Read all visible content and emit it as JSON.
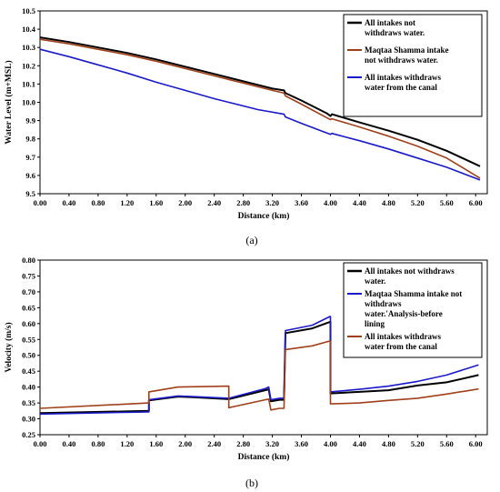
{
  "chart_data": [
    {
      "type": "line",
      "panel": "(a)",
      "xlabel": "Distance (km)",
      "ylabel": "Water Level (m+MSL)",
      "xlim": [
        0,
        6.16
      ],
      "ylim": [
        9.5,
        10.5
      ],
      "xticks": [
        "0.00",
        "0.40",
        "0.80",
        "1.20",
        "1.60",
        "2.00",
        "2.40",
        "2.80",
        "3.20",
        "3.60",
        "4.00",
        "4.40",
        "4.80",
        "5.20",
        "5.60",
        "6.00"
      ],
      "yticks": [
        "9.5",
        "9.6",
        "9.7",
        "9.8",
        "9.9",
        "10.0",
        "10.1",
        "10.2",
        "10.3",
        "10.4",
        "10.5"
      ],
      "legend_position": "top-right",
      "series": [
        {
          "name": "All intakes not withdraws water.",
          "color": "#000000",
          "points": [
            [
              0,
              10.355
            ],
            [
              0.4,
              10.33
            ],
            [
              0.8,
              10.3
            ],
            [
              1.2,
              10.27
            ],
            [
              1.6,
              10.235
            ],
            [
              2.0,
              10.195
            ],
            [
              2.4,
              10.155
            ],
            [
              2.8,
              10.115
            ],
            [
              3.2,
              10.075
            ],
            [
              3.36,
              10.065
            ],
            [
              3.38,
              10.05
            ],
            [
              3.6,
              10.01
            ],
            [
              3.95,
              9.94
            ],
            [
              4.0,
              9.925
            ],
            [
              4.02,
              9.935
            ],
            [
              4.4,
              9.89
            ],
            [
              4.8,
              9.845
            ],
            [
              5.2,
              9.795
            ],
            [
              5.6,
              9.735
            ],
            [
              6.06,
              9.65
            ]
          ]
        },
        {
          "name": "Maqtaa Shamma intake not withdraws water.",
          "color": "#a0401a",
          "points": [
            [
              0,
              10.345
            ],
            [
              0.4,
              10.32
            ],
            [
              0.8,
              10.29
            ],
            [
              1.2,
              10.26
            ],
            [
              1.6,
              10.225
            ],
            [
              2.0,
              10.185
            ],
            [
              2.4,
              10.145
            ],
            [
              2.8,
              10.105
            ],
            [
              3.2,
              10.065
            ],
            [
              3.36,
              10.05
            ],
            [
              3.38,
              10.035
            ],
            [
              3.6,
              9.99
            ],
            [
              4.0,
              9.905
            ],
            [
              4.02,
              9.91
            ],
            [
              4.4,
              9.865
            ],
            [
              4.8,
              9.815
            ],
            [
              5.2,
              9.76
            ],
            [
              5.6,
              9.695
            ],
            [
              6.06,
              9.585
            ]
          ]
        },
        {
          "name": "All intakes withdraws water from the canal",
          "color": "#1a1ac8",
          "points": [
            [
              0,
              10.29
            ],
            [
              0.4,
              10.25
            ],
            [
              0.8,
              10.205
            ],
            [
              1.2,
              10.16
            ],
            [
              1.6,
              10.11
            ],
            [
              2.0,
              10.065
            ],
            [
              2.4,
              10.02
            ],
            [
              2.6,
              10.0
            ],
            [
              3.0,
              9.96
            ],
            [
              3.36,
              9.935
            ],
            [
              3.38,
              9.92
            ],
            [
              3.6,
              9.885
            ],
            [
              4.0,
              9.825
            ],
            [
              4.02,
              9.83
            ],
            [
              4.4,
              9.79
            ],
            [
              4.8,
              9.745
            ],
            [
              5.2,
              9.695
            ],
            [
              5.6,
              9.645
            ],
            [
              6.06,
              9.575
            ]
          ]
        }
      ]
    },
    {
      "type": "line",
      "panel": "(b)",
      "xlabel": "Distance (km)",
      "ylabel": "Velocity (m/s)",
      "xlim": [
        0,
        6.16
      ],
      "ylim": [
        0.25,
        0.8
      ],
      "xticks": [
        "0.00",
        "0.40",
        "0.80",
        "1.20",
        "1.60",
        "2.00",
        "2.40",
        "2.80",
        "3.20",
        "3.60",
        "4.00",
        "4.40",
        "4.80",
        "5.20",
        "5.60",
        "6.00"
      ],
      "yticks": [
        "0.25",
        "0.30",
        "0.35",
        "0.40",
        "0.45",
        "0.50",
        "0.55",
        "0.60",
        "0.65",
        "0.70",
        "0.75",
        "0.80"
      ],
      "legend_position": "top-right",
      "series": [
        {
          "name": "All intakes not withdraws water.",
          "color": "#000000",
          "points": [
            [
              0,
              0.318
            ],
            [
              1.5,
              0.325
            ],
            [
              1.5,
              0.358
            ],
            [
              1.9,
              0.37
            ],
            [
              2.1,
              0.368
            ],
            [
              2.6,
              0.362
            ],
            [
              3.1,
              0.39
            ],
            [
              3.15,
              0.393
            ],
            [
              3.18,
              0.355
            ],
            [
              3.3,
              0.36
            ],
            [
              3.36,
              0.36
            ],
            [
              3.38,
              0.57
            ],
            [
              3.75,
              0.585
            ],
            [
              3.99,
              0.605
            ],
            [
              4.0,
              0.605
            ],
            [
              4.0,
              0.38
            ],
            [
              4.4,
              0.385
            ],
            [
              4.8,
              0.39
            ],
            [
              5.2,
              0.405
            ],
            [
              5.6,
              0.415
            ],
            [
              6.04,
              0.438
            ]
          ]
        },
        {
          "name": "Maqtaa Shamma intake not withdraws water.'Analysis-before lining",
          "color": "#1a1ac8",
          "points": [
            [
              0,
              0.315
            ],
            [
              1.5,
              0.322
            ],
            [
              1.5,
              0.36
            ],
            [
              1.9,
              0.372
            ],
            [
              2.1,
              0.37
            ],
            [
              2.6,
              0.365
            ],
            [
              3.1,
              0.395
            ],
            [
              3.15,
              0.4
            ],
            [
              3.18,
              0.36
            ],
            [
              3.3,
              0.365
            ],
            [
              3.36,
              0.365
            ],
            [
              3.38,
              0.578
            ],
            [
              3.75,
              0.595
            ],
            [
              3.99,
              0.622
            ],
            [
              4.0,
              0.622
            ],
            [
              4.0,
              0.385
            ],
            [
              4.4,
              0.393
            ],
            [
              4.8,
              0.403
            ],
            [
              5.2,
              0.418
            ],
            [
              5.6,
              0.438
            ],
            [
              6.04,
              0.47
            ]
          ]
        },
        {
          "name": "All intakes withdraws water from the canal",
          "color": "#a0401a",
          "points": [
            [
              0,
              0.333
            ],
            [
              1.5,
              0.35
            ],
            [
              1.5,
              0.385
            ],
            [
              1.9,
              0.4
            ],
            [
              2.6,
              0.403
            ],
            [
              2.6,
              0.335
            ],
            [
              3.1,
              0.36
            ],
            [
              3.15,
              0.362
            ],
            [
              3.18,
              0.328
            ],
            [
              3.3,
              0.333
            ],
            [
              3.36,
              0.333
            ],
            [
              3.38,
              0.518
            ],
            [
              3.75,
              0.53
            ],
            [
              3.99,
              0.545
            ],
            [
              4.0,
              0.545
            ],
            [
              4.0,
              0.347
            ],
            [
              4.4,
              0.35
            ],
            [
              4.8,
              0.358
            ],
            [
              5.2,
              0.365
            ],
            [
              5.6,
              0.378
            ],
            [
              6.04,
              0.394
            ]
          ]
        }
      ]
    }
  ]
}
